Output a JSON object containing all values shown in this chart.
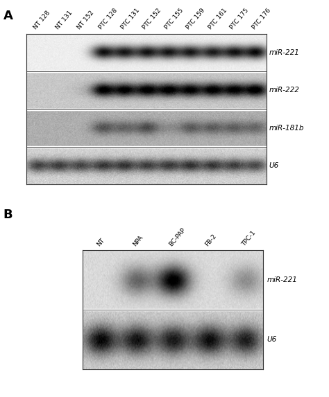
{
  "panel_A_label": "A",
  "panel_B_label": "B",
  "panel_A_columns": [
    "NT 128",
    "NT 131",
    "NT 152",
    "PTC 128",
    "PTC 131",
    "PTC 152",
    "PTC 155",
    "PTC 159",
    "PTC 161",
    "PTC 175",
    "PTC 176"
  ],
  "panel_A_rows": [
    "miR-221",
    "miR-222",
    "miR-181b",
    "U6"
  ],
  "panel_B_columns": [
    "NT",
    "NPA",
    "BC-PAP",
    "FB-2",
    "TPC-1"
  ],
  "panel_B_rows": [
    "miR-221",
    "U6"
  ],
  "A_miR221_intensities": [
    0.0,
    0.0,
    0.0,
    0.85,
    0.8,
    0.82,
    0.8,
    0.8,
    0.78,
    0.82,
    0.88
  ],
  "A_miR222_intensities": [
    0.0,
    0.0,
    0.05,
    0.82,
    0.78,
    0.8,
    0.8,
    0.78,
    0.8,
    0.78,
    0.84
  ],
  "A_miR181b_intensities": [
    0.0,
    0.0,
    0.0,
    0.35,
    0.28,
    0.38,
    0.12,
    0.32,
    0.3,
    0.3,
    0.28
  ],
  "A_U6_intensities": [
    0.55,
    0.55,
    0.52,
    0.58,
    0.6,
    0.55,
    0.57,
    0.6,
    0.58,
    0.55,
    0.52
  ],
  "B_miR221_intensities": [
    0.0,
    0.45,
    0.9,
    0.0,
    0.3
  ],
  "B_U6_intensities": [
    0.78,
    0.72,
    0.7,
    0.75,
    0.68
  ],
  "bg_A_rows": [
    0.93,
    0.78,
    0.68,
    0.82
  ],
  "bg_B_rows": [
    0.85,
    0.8
  ],
  "noise_scale_A": [
    0.015,
    0.025,
    0.03,
    0.035
  ],
  "noise_scale_B": [
    0.02,
    0.03
  ],
  "figure_bg": "#ffffff"
}
